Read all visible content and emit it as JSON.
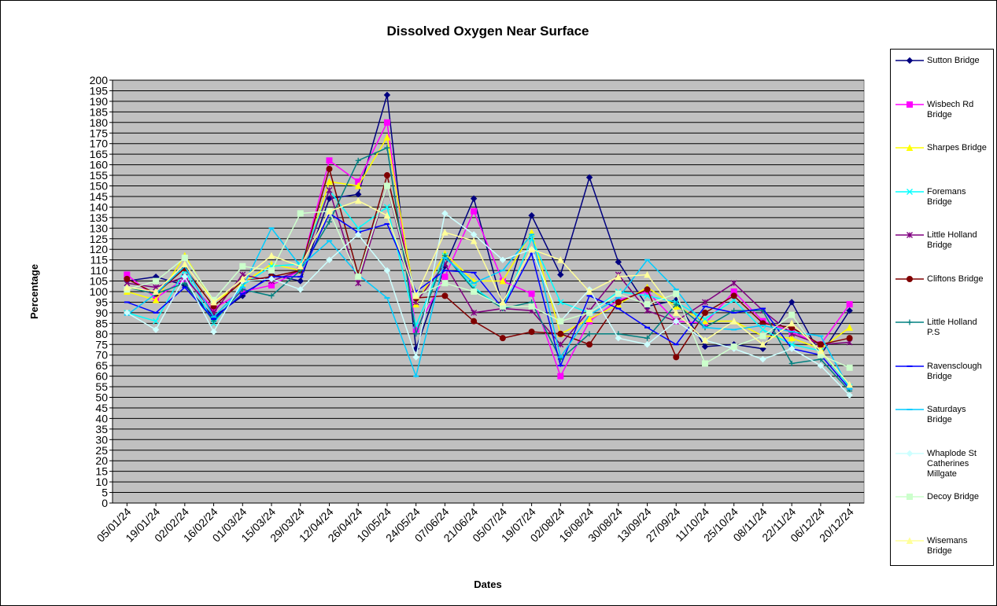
{
  "chart_data": {
    "type": "line",
    "title": "Dissolved Oxygen Near Surface",
    "x_label": "Dates",
    "y_label": "Percentage",
    "categories": [
      "05/01/24",
      "19/01/24",
      "02/02/24",
      "16/02/24",
      "01/03/24",
      "15/03/24",
      "29/03/24",
      "12/04/24",
      "26/04/24",
      "10/05/24",
      "24/05/24",
      "07/06/24",
      "21/06/24",
      "05/07/24",
      "19/07/24",
      "02/08/24",
      "16/08/24",
      "30/08/24",
      "13/09/24",
      "27/09/24",
      "11/10/24",
      "25/10/24",
      "08/11/24",
      "22/11/24",
      "06/12/24",
      "20/12/24"
    ],
    "ylim": [
      0,
      200
    ],
    "yticks": [
      0,
      5,
      10,
      15,
      20,
      25,
      30,
      35,
      40,
      45,
      50,
      55,
      60,
      65,
      70,
      75,
      80,
      85,
      90,
      95,
      100,
      105,
      110,
      115,
      120,
      125,
      130,
      135,
      140,
      145,
      150,
      155,
      160,
      165,
      170,
      175,
      180,
      185,
      190,
      195,
      200
    ],
    "grid": true,
    "legend": "right",
    "series": [
      {
        "name": "Sutton Bridge",
        "color": "#000080",
        "values": [
          105,
          107,
          103,
          88,
          98,
          108,
          105,
          144,
          146,
          193,
          73,
          112,
          144,
          93,
          136,
          108,
          154,
          114,
          93,
          96,
          74,
          75,
          73,
          95,
          70,
          91
        ]
      },
      {
        "name": "Wisbech Rd Bridge",
        "color": "#FF00FF",
        "values": [
          108,
          97,
          106,
          92,
          100,
          103,
          110,
          162,
          152,
          180,
          82,
          107,
          138,
          105,
          99,
          60,
          86,
          96,
          100,
          86,
          85,
          100,
          86,
          81,
          75,
          94
        ]
      },
      {
        "name": "Sharpes Bridge",
        "color": "#FFFF00",
        "values": [
          100,
          96,
          117,
          95,
          104,
          113,
          110,
          152,
          150,
          173,
          94,
          118,
          105,
          105,
          128,
          80,
          87,
          94,
          102,
          93,
          86,
          86,
          79,
          78,
          73,
          83
        ]
      },
      {
        "name": "Foremans Bridge",
        "color": "#00FFFF",
        "values": [
          90,
          86,
          110,
          85,
          103,
          112,
          113,
          148,
          130,
          140,
          84,
          117,
          102,
          92,
          125,
          95,
          90,
          100,
          98,
          95,
          87,
          96,
          82,
          75,
          72,
          55
        ]
      },
      {
        "name": "Little Holland Bridge",
        "color": "#800080",
        "values": [
          104,
          102,
          107,
          90,
          108,
          105,
          110,
          148,
          104,
          150,
          95,
          113,
          90,
          92,
          91,
          75,
          91,
          108,
          91,
          86,
          95,
          104,
          91,
          80,
          75,
          76
        ]
      },
      {
        "name": "Cliftons Bridge",
        "color": "#800000",
        "values": [
          106,
          99,
          111,
          93,
          105,
          107,
          110,
          158,
          108,
          155,
          97,
          98,
          86,
          78,
          81,
          80,
          75,
          95,
          101,
          69,
          90,
          98,
          85,
          83,
          75,
          78
        ]
      },
      {
        "name": "Little Holland P.S",
        "color": "#008080",
        "values": [
          102,
          99,
          104,
          86,
          101,
          98,
          110,
          133,
          162,
          168,
          80,
          117,
          101,
          92,
          95,
          68,
          80,
          80,
          78,
          94,
          83,
          91,
          91,
          66,
          68,
          53
        ]
      },
      {
        "name": "Ravensclough Bridge",
        "color": "#0000FF",
        "values": [
          95,
          90,
          102,
          87,
          99,
          107,
          107,
          137,
          128,
          132,
          100,
          110,
          109,
          92,
          118,
          65,
          98,
          92,
          83,
          75,
          93,
          90,
          92,
          73,
          70,
          54
        ]
      },
      {
        "name": "Saturdays Bridge",
        "color": "#00CCFF",
        "values": [
          89,
          99,
          112,
          88,
          102,
          130,
          112,
          124,
          108,
          97,
          60,
          116,
          104,
          110,
          127,
          69,
          89,
          97,
          115,
          101,
          83,
          82,
          84,
          81,
          79,
          54
        ]
      },
      {
        "name": "Whaplode St Catherines Millgate",
        "color": "#CCFFFF",
        "values": [
          90,
          82,
          107,
          81,
          105,
          106,
          101,
          115,
          127,
          110,
          69,
          137,
          127,
          115,
          120,
          86,
          101,
          78,
          75,
          86,
          77,
          73,
          68,
          73,
          65,
          51
        ]
      },
      {
        "name": "Decoy Bridge",
        "color": "#CCFFCC",
        "values": [
          101,
          105,
          116,
          96,
          112,
          110,
          137,
          138,
          107,
          150,
          98,
          104,
          100,
          93,
          93,
          86,
          90,
          99,
          94,
          99,
          66,
          74,
          79,
          89,
          70,
          64
        ]
      },
      {
        "name": "Wisemans Bridge",
        "color": "#FFFF99",
        "values": [
          102,
          100,
          113,
          95,
          106,
          117,
          112,
          138,
          143,
          136,
          98,
          128,
          124,
          95,
          120,
          115,
          100,
          107,
          108,
          90,
          77,
          86,
          75,
          85,
          72,
          56
        ]
      }
    ]
  }
}
